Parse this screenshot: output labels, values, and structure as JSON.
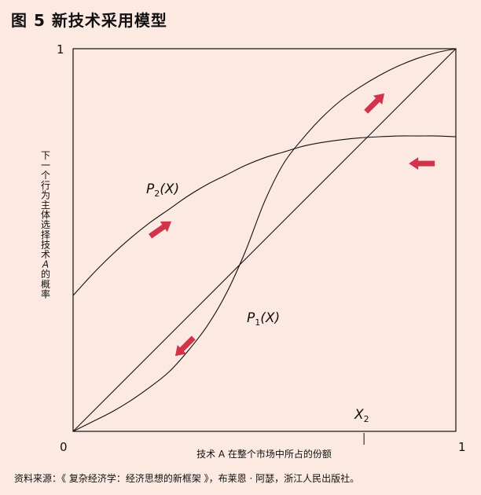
{
  "figure": {
    "title": "图 5  新技术采用模型",
    "source": "资料来源：《 复杂经济学：经济思想的新框架 》，布莱恩 · 阿瑟，浙江人民出版社。"
  },
  "chart_data": {
    "type": "line",
    "xlabel": "技术 A 在整个市场中所占的份额",
    "ylabel": "下一个行为主体选择技术 A 的概率",
    "xlim": [
      0,
      1
    ],
    "ylim": [
      0,
      1
    ],
    "tick_labels": {
      "x0": "0",
      "x1": "1",
      "y1": "1"
    },
    "grid": false,
    "series": [
      {
        "name": "P1(X)",
        "label_main": "P",
        "label_sub": "1",
        "label_tail": "(X)",
        "x": [
          0,
          0.05,
          0.1,
          0.15,
          0.2,
          0.25,
          0.3,
          0.35,
          0.4,
          0.45,
          0.5,
          0.55,
          0.6,
          0.65,
          0.7,
          0.75,
          0.8,
          0.85,
          0.9,
          0.95,
          1
        ],
        "y": [
          0,
          0.025,
          0.05,
          0.08,
          0.115,
          0.155,
          0.21,
          0.275,
          0.36,
          0.47,
          0.6,
          0.7,
          0.765,
          0.82,
          0.865,
          0.9,
          0.93,
          0.955,
          0.975,
          0.99,
          1
        ]
      },
      {
        "name": "P2(X)",
        "label_main": "P",
        "label_sub": "2",
        "label_tail": "(X)",
        "x": [
          0,
          0.05,
          0.1,
          0.15,
          0.2,
          0.25,
          0.3,
          0.35,
          0.4,
          0.45,
          0.5,
          0.55,
          0.6,
          0.65,
          0.7,
          0.75,
          0.8,
          0.85,
          0.9,
          0.95,
          1
        ],
        "y": [
          0.355,
          0.41,
          0.46,
          0.505,
          0.545,
          0.58,
          0.615,
          0.645,
          0.67,
          0.695,
          0.715,
          0.73,
          0.745,
          0.755,
          0.762,
          0.767,
          0.77,
          0.772,
          0.772,
          0.772,
          0.77
        ]
      },
      {
        "name": "diagonal",
        "x": [
          0,
          1
        ],
        "y": [
          0,
          1
        ]
      }
    ],
    "annotations": {
      "x2": {
        "main": "X",
        "sub": "2",
        "x": 0.76
      }
    },
    "arrows": [
      {
        "name": "arrow-upper-right",
        "x": 0.79,
        "y": 0.86,
        "angle": -45
      },
      {
        "name": "arrow-left",
        "x": 0.91,
        "y": 0.7,
        "angle": 180
      },
      {
        "name": "arrow-p2-right",
        "x": 0.23,
        "y": 0.53,
        "angle": -35
      },
      {
        "name": "arrow-down-left",
        "x": 0.29,
        "y": 0.22,
        "angle": 135
      }
    ],
    "colors": {
      "arrow": "#d2334a",
      "line": "#111111",
      "background": "#fbe9e2"
    }
  }
}
